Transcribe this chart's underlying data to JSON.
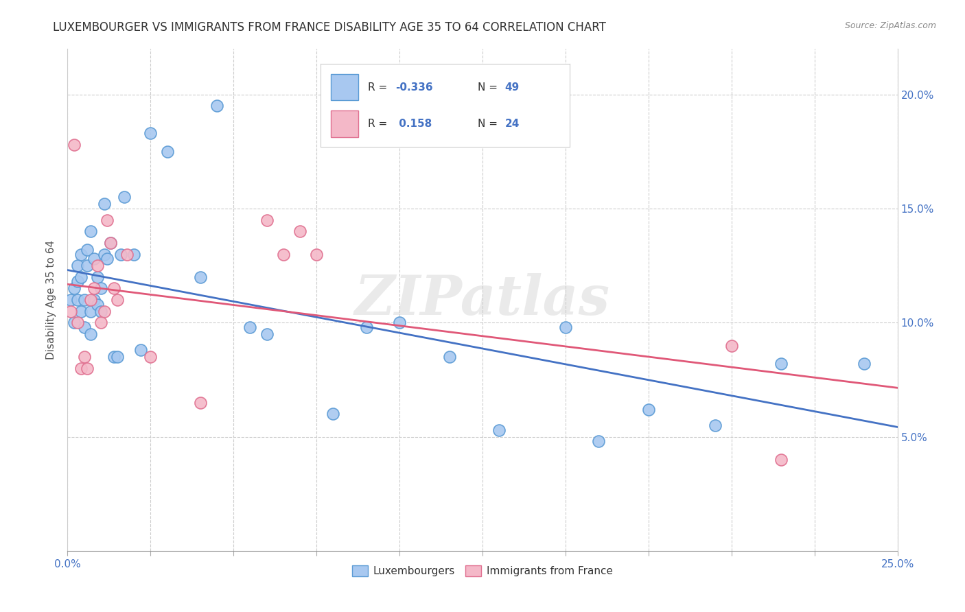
{
  "title": "LUXEMBOURGER VS IMMIGRANTS FROM FRANCE DISABILITY AGE 35 TO 64 CORRELATION CHART",
  "source": "Source: ZipAtlas.com",
  "ylabel": "Disability Age 35 to 64",
  "xlim": [
    0.0,
    0.25
  ],
  "ylim": [
    0.0,
    0.22
  ],
  "yticks": [
    0.05,
    0.1,
    0.15,
    0.2
  ],
  "ytick_labels": [
    "5.0%",
    "10.0%",
    "15.0%",
    "20.0%"
  ],
  "xticks": [
    0.0,
    0.025,
    0.05,
    0.075,
    0.1,
    0.125,
    0.15,
    0.175,
    0.2,
    0.225,
    0.25
  ],
  "xtick_labels_show": {
    "0.0": "0.0%",
    "0.25": "25.0%"
  },
  "blue_color": "#A8C8F0",
  "pink_color": "#F4B8C8",
  "blue_edge_color": "#5B9BD5",
  "pink_edge_color": "#E07090",
  "blue_line_color": "#4472C4",
  "pink_line_color": "#E05878",
  "text_color": "#4472C4",
  "watermark": "ZIPatlas",
  "legend": {
    "blue_label": "Luxembourgers",
    "pink_label": "Immigrants from France",
    "blue_R": "-0.336",
    "blue_N": "49",
    "pink_R": "0.158",
    "pink_N": "24"
  },
  "blue_x": [
    0.001,
    0.002,
    0.002,
    0.003,
    0.003,
    0.003,
    0.004,
    0.004,
    0.004,
    0.005,
    0.005,
    0.006,
    0.006,
    0.007,
    0.007,
    0.007,
    0.008,
    0.008,
    0.009,
    0.009,
    0.01,
    0.01,
    0.011,
    0.011,
    0.012,
    0.013,
    0.014,
    0.015,
    0.016,
    0.017,
    0.02,
    0.022,
    0.025,
    0.03,
    0.04,
    0.045,
    0.055,
    0.06,
    0.08,
    0.09,
    0.1,
    0.115,
    0.13,
    0.15,
    0.16,
    0.175,
    0.195,
    0.215,
    0.24
  ],
  "blue_y": [
    0.11,
    0.115,
    0.1,
    0.118,
    0.125,
    0.11,
    0.105,
    0.13,
    0.12,
    0.11,
    0.098,
    0.132,
    0.125,
    0.095,
    0.105,
    0.14,
    0.128,
    0.11,
    0.12,
    0.108,
    0.105,
    0.115,
    0.152,
    0.13,
    0.128,
    0.135,
    0.085,
    0.085,
    0.13,
    0.155,
    0.13,
    0.088,
    0.183,
    0.175,
    0.12,
    0.195,
    0.098,
    0.095,
    0.06,
    0.098,
    0.1,
    0.085,
    0.053,
    0.098,
    0.048,
    0.062,
    0.055,
    0.082,
    0.082
  ],
  "pink_x": [
    0.001,
    0.002,
    0.003,
    0.004,
    0.005,
    0.006,
    0.007,
    0.008,
    0.009,
    0.01,
    0.011,
    0.012,
    0.013,
    0.014,
    0.015,
    0.018,
    0.025,
    0.04,
    0.06,
    0.065,
    0.07,
    0.075,
    0.2,
    0.215
  ],
  "pink_y": [
    0.105,
    0.178,
    0.1,
    0.08,
    0.085,
    0.08,
    0.11,
    0.115,
    0.125,
    0.1,
    0.105,
    0.145,
    0.135,
    0.115,
    0.11,
    0.13,
    0.085,
    0.065,
    0.145,
    0.13,
    0.14,
    0.13,
    0.09,
    0.04
  ]
}
